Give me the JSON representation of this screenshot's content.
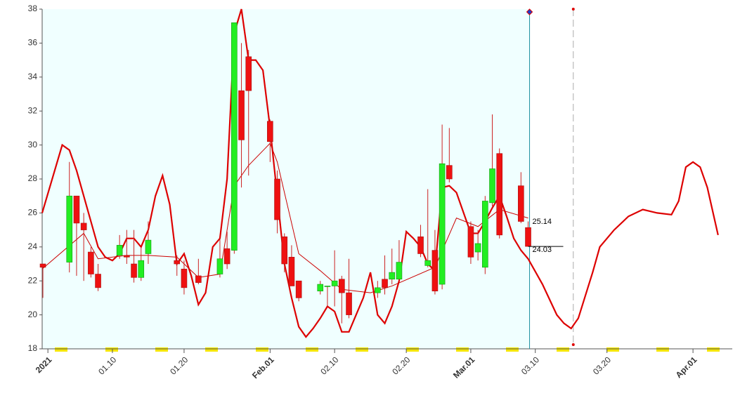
{
  "chart_data": {
    "type": "candlestick",
    "xlim": [
      0.2,
      95.5
    ],
    "ylim": [
      18,
      38
    ],
    "yticks": [
      18,
      20,
      22,
      24,
      26,
      28,
      30,
      32,
      34,
      36,
      38
    ],
    "xticks": [
      {
        "value": 1,
        "label": "2021"
      },
      {
        "value": 10,
        "label": "01.10"
      },
      {
        "value": 20,
        "label": "01.20"
      },
      {
        "value": 32,
        "label": "Feb.01"
      },
      {
        "value": 41,
        "label": "02.10"
      },
      {
        "value": 51,
        "label": "02.20"
      },
      {
        "value": 60,
        "label": "Mar.01"
      },
      {
        "value": 69,
        "label": "03.10"
      },
      {
        "value": 79,
        "label": "03.20"
      },
      {
        "value": 91,
        "label": "Apr.01"
      }
    ],
    "xtick_colors": [
      "#8b0000",
      "#808080",
      "#808080",
      "#8b0000",
      "#808080",
      "#808080",
      "#8b0000",
      "#808080",
      "#808080",
      "#8b0000"
    ],
    "up_color": "#22ee22",
    "down_color": "#ee1111",
    "shade_color": "#f0ffff",
    "vlines": [
      68.2,
      74.3
    ],
    "x": [
      0.3,
      4,
      5,
      6,
      7,
      8,
      11,
      12,
      13,
      14,
      15,
      19,
      20,
      22,
      25,
      26,
      27,
      28,
      29,
      32,
      33,
      34,
      35,
      36,
      39,
      40,
      41,
      42,
      43,
      47,
      48,
      49,
      50,
      53,
      54,
      55,
      56,
      57,
      60,
      61,
      62,
      63,
      64,
      67,
      68
    ],
    "open": [
      23,
      23.1,
      27,
      25.4,
      23.7,
      22.4,
      23.5,
      23.5,
      23,
      22.2,
      23.6,
      23.2,
      22.7,
      22.3,
      22.4,
      23.9,
      23.8,
      33.2,
      35.2,
      31.4,
      28,
      24.6,
      23.4,
      22,
      21.4,
      21.7,
      21.7,
      22.1,
      21.3,
      21.3,
      22.1,
      22.1,
      22.1,
      24.6,
      22.9,
      23.8,
      21.8,
      28.8,
      25.2,
      23.7,
      22.8,
      26.6,
      29.5,
      27.6,
      25.14
    ],
    "high": [
      23,
      29,
      27,
      26,
      24,
      23,
      24.7,
      25,
      25,
      24,
      25.5,
      23.5,
      23.2,
      23.3,
      24.5,
      24.9,
      37.2,
      36,
      35.6,
      31.5,
      28.5,
      24.8,
      24.1,
      22,
      22,
      21.7,
      23.8,
      22.3,
      23.3,
      22,
      23.5,
      23.9,
      24.4,
      25.3,
      27.4,
      25,
      31.2,
      31,
      25.5,
      25,
      27,
      31.8,
      29.8,
      28.4,
      25.5
    ],
    "low": [
      21,
      22.5,
      22.3,
      22,
      22.2,
      21.4,
      23.3,
      23,
      21.9,
      22,
      23,
      22.3,
      21.2,
      21.8,
      22.2,
      22.7,
      23.6,
      27.5,
      28.2,
      29,
      24.8,
      22.5,
      21.7,
      20.8,
      21.2,
      20.5,
      20.5,
      19.5,
      19.8,
      21,
      21.2,
      21.8,
      22,
      23.4,
      22.8,
      21.2,
      21.5,
      27.8,
      23,
      23.2,
      22.4,
      26.4,
      24.5,
      25.4,
      24.03
    ],
    "close": [
      22.8,
      27,
      25.4,
      25,
      22.4,
      21.6,
      24.1,
      23.4,
      22.2,
      23.2,
      24.4,
      23,
      21.6,
      21.9,
      23.3,
      23,
      37.2,
      30.3,
      33.2,
      30.2,
      25.6,
      23,
      21.7,
      21,
      21.8,
      21.7,
      22,
      21.3,
      20,
      21.6,
      21.6,
      22.5,
      23.1,
      23.6,
      23.2,
      21.4,
      28.9,
      28,
      23.4,
      24.2,
      26.7,
      28.6,
      24.7,
      25.5,
      24.03
    ],
    "series": [
      {
        "color": "#dd0000",
        "width": 2.2,
        "x": [
          0.2,
          3,
          4,
          5,
          7,
          8,
          9,
          10,
          11,
          12,
          13,
          14,
          15,
          16,
          17,
          18,
          19,
          20,
          21,
          22,
          23,
          24,
          25,
          26,
          27,
          28,
          29,
          30,
          31,
          32,
          33,
          34,
          35,
          36,
          37,
          38,
          39,
          40,
          41,
          42,
          43,
          44,
          45,
          46,
          47,
          48,
          49,
          50,
          51,
          52,
          53,
          54,
          55,
          56,
          57,
          58,
          59,
          60,
          61,
          62,
          63,
          64,
          65,
          66,
          67,
          68,
          70,
          72,
          73,
          74,
          75,
          77,
          78,
          80,
          82,
          84,
          86,
          88,
          89,
          90,
          91,
          92,
          93,
          94.5
        ],
        "values": [
          26,
          30,
          29.7,
          28.5,
          25.5,
          24,
          23.4,
          23.2,
          23.6,
          24.5,
          24.5,
          24,
          25,
          27,
          28.2,
          26.5,
          23,
          23.6,
          22.3,
          20.6,
          21.3,
          24,
          24.5,
          28,
          36.6,
          38,
          35,
          35,
          34.4,
          31,
          27,
          23,
          21,
          19.3,
          18.7,
          19.2,
          19.8,
          20.5,
          20.2,
          19,
          19,
          20,
          21,
          22.5,
          20,
          19.5,
          20.5,
          22,
          24.9,
          24.5,
          24,
          23,
          22.6,
          27.5,
          27.6,
          27.2,
          26,
          24.8,
          24.8,
          25.5,
          26.3,
          27,
          25.8,
          24.5,
          23.8,
          23.3,
          21.8,
          20,
          19.5,
          19.2,
          19.8,
          22.5,
          24,
          25,
          25.8,
          26.2,
          26,
          25.9,
          26.7,
          28.7,
          29,
          28.7,
          27.5,
          24.7
        ]
      },
      {
        "color": "#cc0000",
        "width": 1,
        "x": [
          0.2,
          6,
          8,
          12,
          15,
          19,
          22,
          25,
          27,
          29,
          32,
          33,
          36,
          39,
          42,
          46,
          49,
          55,
          58,
          61,
          64,
          68
        ],
        "values": [
          22.7,
          24.8,
          23.3,
          23.5,
          23.5,
          23.4,
          22.2,
          22.4,
          27.6,
          28.8,
          30.1,
          29,
          23.6,
          22.6,
          21.5,
          21.3,
          21.7,
          22.8,
          25.7,
          25.2,
          26.2,
          25.7
        ]
      }
    ],
    "annotations": [
      {
        "x": 68,
        "y": 25.14
      },
      {
        "x": 68,
        "y": 24.03
      }
    ]
  }
}
